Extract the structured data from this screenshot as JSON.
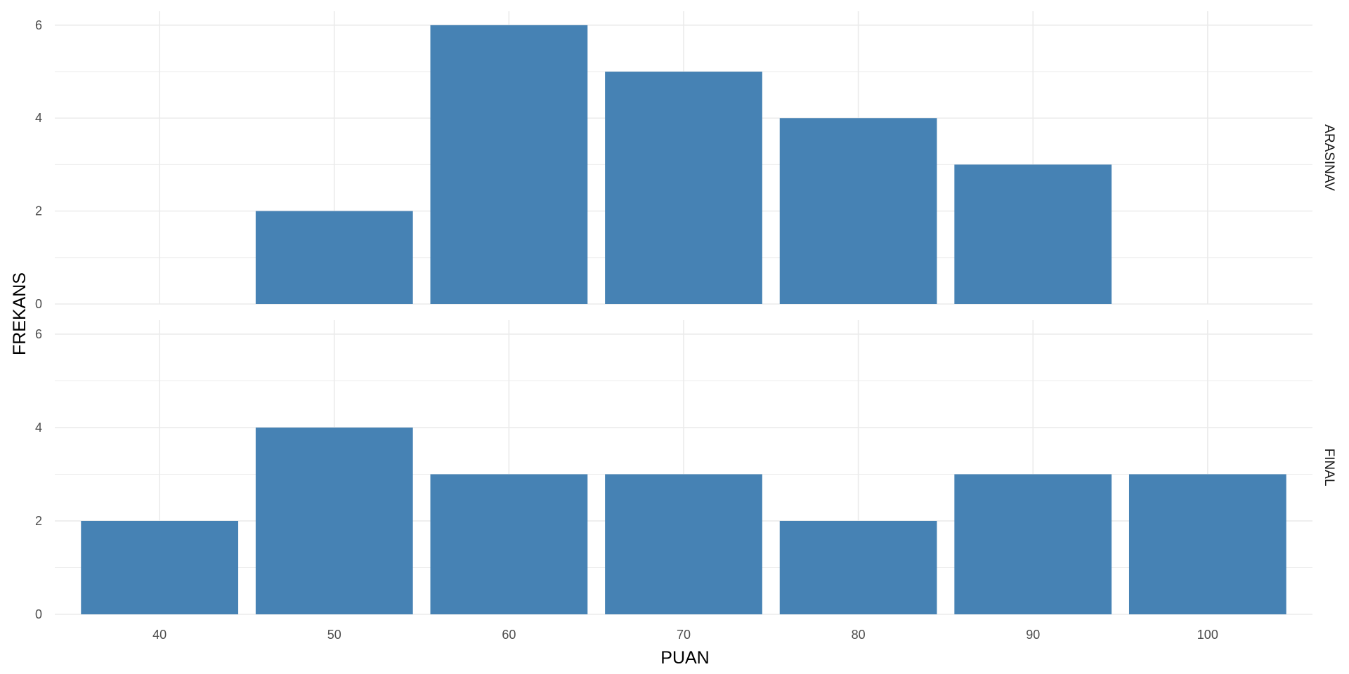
{
  "chart_data": {
    "type": "bar",
    "xlabel": "PUAN",
    "ylabel": "FREKANS",
    "x_ticks": [
      40,
      50,
      60,
      70,
      80,
      90,
      100
    ],
    "xlim": [
      34,
      106
    ],
    "ylim": [
      0,
      6.3
    ],
    "y_ticks": [
      0,
      2,
      4,
      6
    ],
    "grid": true,
    "bar_color": "#4682B4",
    "panels": [
      {
        "label": "ARASINAV",
        "x": [
          50,
          60,
          70,
          80,
          90
        ],
        "values": [
          2,
          6,
          5,
          4,
          3
        ]
      },
      {
        "label": "FINAL",
        "x": [
          40,
          50,
          60,
          70,
          80,
          90,
          100
        ],
        "values": [
          2,
          4,
          3,
          3,
          2,
          3,
          3
        ]
      }
    ]
  }
}
